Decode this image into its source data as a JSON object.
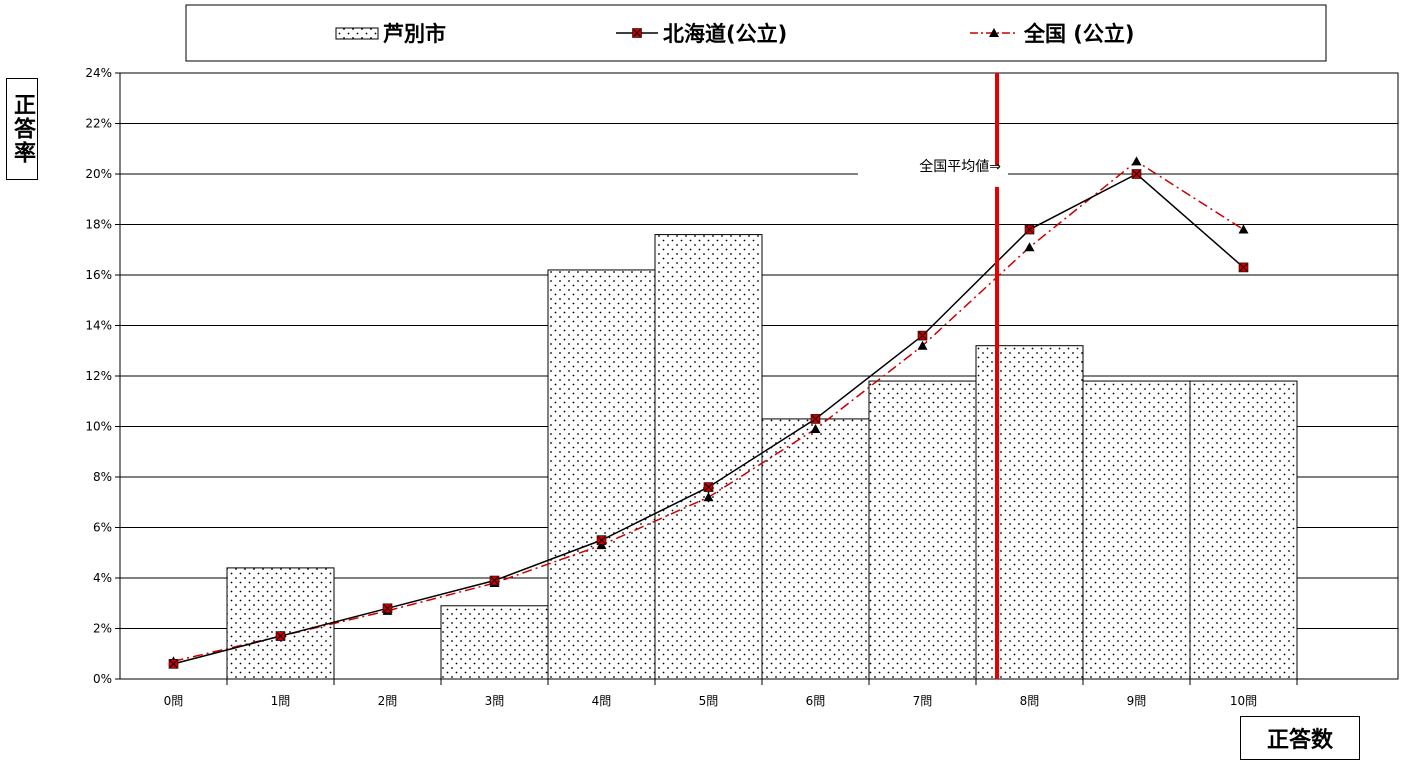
{
  "chart_data": {
    "type": "bar",
    "categories": [
      "0問",
      "1問",
      "2問",
      "3問",
      "4問",
      "5問",
      "6問",
      "7問",
      "8問",
      "9問",
      "10問"
    ],
    "series": [
      {
        "name": "芦別市",
        "type": "bar",
        "pattern": "dotted",
        "values": [
          0,
          4.4,
          0,
          2.9,
          16.2,
          17.6,
          10.3,
          11.8,
          13.2,
          11.8,
          11.8
        ]
      },
      {
        "name": "北海道(公立)",
        "type": "line",
        "color": "#000000",
        "marker": "square-x",
        "marker_color": "#cc0000",
        "values": [
          0.6,
          1.7,
          2.8,
          3.9,
          5.5,
          7.6,
          10.3,
          13.6,
          17.8,
          20.0,
          16.3
        ]
      },
      {
        "name": "全国 (公立)",
        "type": "line",
        "color": "#cc0000",
        "dash": "dash-dot",
        "marker": "triangle",
        "marker_color": "#000000",
        "values": [
          0.7,
          1.7,
          2.7,
          3.8,
          5.3,
          7.2,
          9.9,
          13.2,
          17.1,
          20.5,
          17.8
        ]
      }
    ],
    "xlabel": "正答数",
    "ylabel": "正答率",
    "ylim": [
      0,
      24
    ],
    "ytick_step": 2,
    "ytick_labels": [
      "0%",
      "2%",
      "4%",
      "6%",
      "8%",
      "10%",
      "12%",
      "14%",
      "16%",
      "18%",
      "20%",
      "22%",
      "24%"
    ],
    "grid": "horizontal",
    "legend_position": "top",
    "average_line": {
      "label": "全国平均値⇒",
      "x": 8.0,
      "color": "#e60000"
    }
  }
}
